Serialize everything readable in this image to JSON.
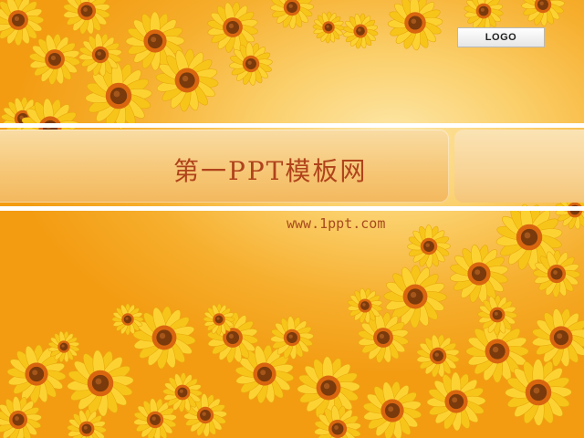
{
  "slide": {
    "title": "第一PPT模板网",
    "url": "www.1ppt.com",
    "logo": "LOGO"
  },
  "colors": {
    "background": "#f39c12",
    "title_text": "#b0431b",
    "url_text": "#a74a1d",
    "petal": "#f7c51a",
    "flower_center": "#7a3a0c"
  }
}
